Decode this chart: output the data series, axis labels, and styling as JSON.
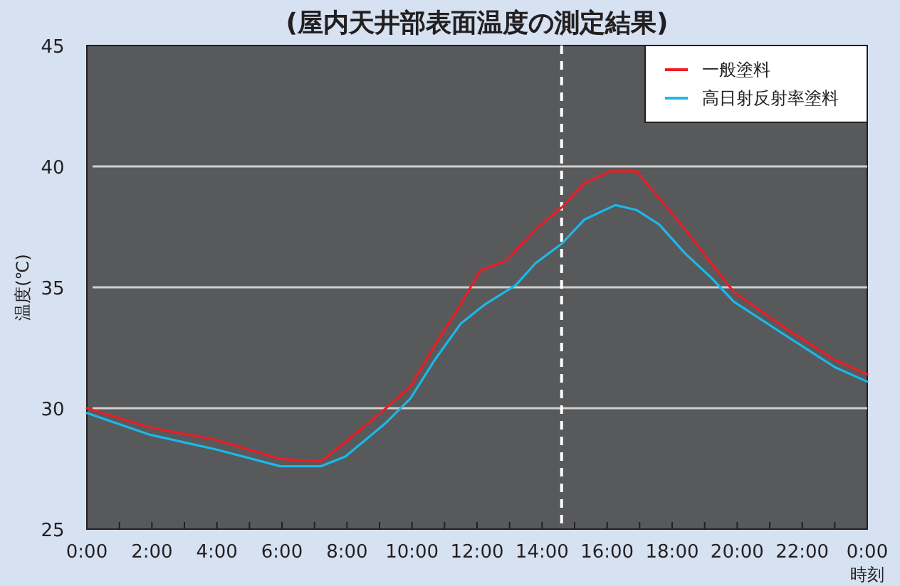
{
  "chart_data": {
    "type": "line",
    "title": "(屋内天井部表面温度の測定結果)",
    "xlabel": "時刻",
    "ylabel": "温度(℃)",
    "xlim": [
      0,
      24
    ],
    "xticks": [
      {
        "value": 0,
        "label": "0:00"
      },
      {
        "value": 1,
        "label": null
      },
      {
        "value": 2,
        "label": "2:00"
      },
      {
        "value": 3,
        "label": null
      },
      {
        "value": 4,
        "label": "4:00"
      },
      {
        "value": 5,
        "label": null
      },
      {
        "value": 6,
        "label": "6:00"
      },
      {
        "value": 7,
        "label": null
      },
      {
        "value": 8,
        "label": "8:00"
      },
      {
        "value": 9,
        "label": null
      },
      {
        "value": 10,
        "label": "10:00"
      },
      {
        "value": 11,
        "label": null
      },
      {
        "value": 12,
        "label": "12:00"
      },
      {
        "value": 13,
        "label": null
      },
      {
        "value": 14,
        "label": "14:00"
      },
      {
        "value": 15,
        "label": null
      },
      {
        "value": 16,
        "label": "16:00"
      },
      {
        "value": 17,
        "label": null
      },
      {
        "value": 18,
        "label": "18:00"
      },
      {
        "value": 19,
        "label": null
      },
      {
        "value": 20,
        "label": "20:00"
      },
      {
        "value": 21,
        "label": null
      },
      {
        "value": 22,
        "label": "22:00"
      },
      {
        "value": 23,
        "label": null
      },
      {
        "value": 24,
        "label": "0:00"
      }
    ],
    "ylim": [
      25,
      45
    ],
    "yticks": [
      25,
      30,
      35,
      40,
      45
    ],
    "grid": "y",
    "legend": "top right",
    "marker": "none",
    "line_style": "solid",
    "series": [
      {
        "name": "一般塗料",
        "color": "#ee1c25",
        "x": [
          0,
          1.95,
          3.95,
          5.95,
          7.2,
          7.95,
          9.2,
          9.95,
          10.7,
          11.5,
          12.1,
          12.9,
          13.8,
          14.6,
          15.3,
          16.1,
          16.9,
          17.6,
          18.4,
          19.2,
          19.9,
          21.5,
          23,
          24
        ],
        "values": [
          30.0,
          29.2,
          28.7,
          27.9,
          27.8,
          28.6,
          30.0,
          30.9,
          32.6,
          34.3,
          35.7,
          36.1,
          37.4,
          38.3,
          39.3,
          39.8,
          39.8,
          38.7,
          37.4,
          36.0,
          34.8,
          33.3,
          32.0,
          31.4
        ]
      },
      {
        "name": "高日射反射率塗料",
        "color": "#1bb8ea",
        "x": [
          0,
          1.95,
          3.95,
          5.95,
          7.2,
          7.95,
          9.2,
          9.95,
          10.7,
          11.5,
          12.25,
          13.2,
          13.8,
          14.6,
          15.3,
          16.25,
          16.9,
          17.6,
          18.4,
          19.2,
          19.9,
          21.5,
          23,
          24
        ],
        "values": [
          29.8,
          28.9,
          28.3,
          27.6,
          27.6,
          28.0,
          29.4,
          30.4,
          32.0,
          33.5,
          34.3,
          35.1,
          36.0,
          36.8,
          37.8,
          38.4,
          38.2,
          37.6,
          36.4,
          35.4,
          34.4,
          33.0,
          31.7,
          31.1
        ]
      }
    ],
    "ref_lines": [
      {
        "axis": "x",
        "value": 14.6,
        "color": "#ffffff",
        "line_style": "dashed"
      }
    ]
  }
}
